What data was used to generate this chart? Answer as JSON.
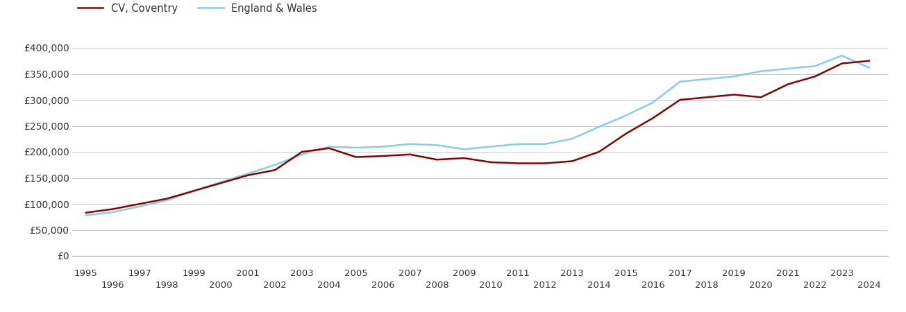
{
  "coventry": {
    "years": [
      1995,
      1996,
      1997,
      1998,
      1999,
      2000,
      2001,
      2002,
      2003,
      2004,
      2005,
      2006,
      2007,
      2008,
      2009,
      2010,
      2011,
      2012,
      2013,
      2014,
      2015,
      2016,
      2017,
      2018,
      2019,
      2020,
      2021,
      2022,
      2023,
      2024
    ],
    "values": [
      83000,
      90000,
      100000,
      110000,
      125000,
      140000,
      155000,
      165000,
      200000,
      207000,
      190000,
      192000,
      195000,
      185000,
      188000,
      180000,
      178000,
      178000,
      182000,
      200000,
      235000,
      265000,
      300000,
      305000,
      310000,
      305000,
      330000,
      345000,
      370000,
      375000
    ]
  },
  "england_wales": {
    "years": [
      1995,
      1996,
      1997,
      1998,
      1999,
      2000,
      2001,
      2002,
      2003,
      2004,
      2005,
      2006,
      2007,
      2008,
      2009,
      2010,
      2011,
      2012,
      2013,
      2014,
      2015,
      2016,
      2017,
      2018,
      2019,
      2020,
      2021,
      2022,
      2023,
      2024
    ],
    "values": [
      78000,
      84000,
      95000,
      107000,
      125000,
      142000,
      158000,
      175000,
      195000,
      210000,
      208000,
      210000,
      215000,
      213000,
      205000,
      210000,
      215000,
      215000,
      225000,
      248000,
      270000,
      295000,
      335000,
      340000,
      345000,
      355000,
      360000,
      365000,
      385000,
      362000
    ]
  },
  "coventry_color": "#8B0000",
  "england_wales_color": "#87CEEB",
  "background_color": "#ffffff",
  "grid_color": "#cccccc",
  "legend_labels": [
    "CV, Coventry",
    "England & Wales"
  ],
  "ylim": [
    0,
    420000
  ],
  "yticks": [
    0,
    50000,
    100000,
    150000,
    200000,
    250000,
    300000,
    350000,
    400000
  ],
  "ytick_labels": [
    "£0",
    "£50,000",
    "£100,000",
    "£150,000",
    "£200,000",
    "£250,000",
    "£300,000",
    "£350,000",
    "£400,000"
  ],
  "xticks_odd": [
    1995,
    1997,
    1999,
    2001,
    2003,
    2005,
    2007,
    2009,
    2011,
    2013,
    2015,
    2017,
    2019,
    2021,
    2023
  ],
  "xticks_even": [
    1996,
    1998,
    2000,
    2002,
    2004,
    2006,
    2008,
    2010,
    2012,
    2014,
    2016,
    2018,
    2020,
    2022,
    2024
  ],
  "line_width": 1.8,
  "xlim": [
    1994.5,
    2024.7
  ]
}
